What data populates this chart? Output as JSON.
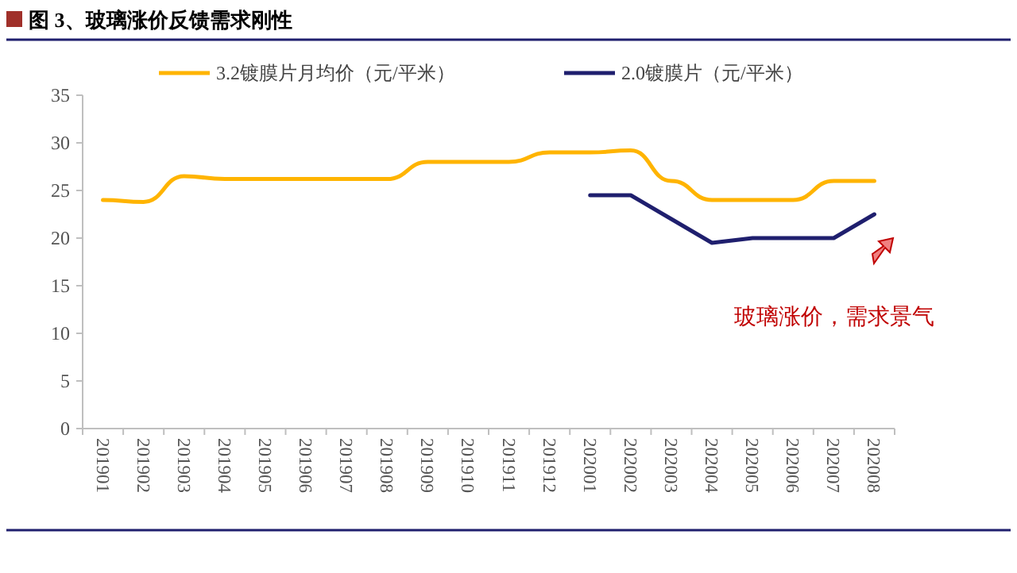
{
  "chart_data": {
    "type": "line",
    "title": "图 3、玻璃涨价反馈需求刚性",
    "categories": [
      "201901",
      "201902",
      "201903",
      "201904",
      "201905",
      "201906",
      "201907",
      "201908",
      "201909",
      "201910",
      "201911",
      "201912",
      "202001",
      "202002",
      "202003",
      "202004",
      "202005",
      "202006",
      "202007",
      "202008"
    ],
    "series": [
      {
        "name": "3.2镀膜片月均价（元/平米）",
        "color": "#ffb400",
        "values": [
          24,
          23.8,
          26.5,
          26.2,
          26.2,
          26.2,
          26.2,
          26.2,
          28,
          28,
          28,
          29,
          29,
          29.2,
          26,
          24,
          24,
          24,
          26,
          26
        ]
      },
      {
        "name": "2.0镀膜片（元/平米）",
        "color": "#1f1f6e",
        "values": [
          null,
          null,
          null,
          null,
          null,
          null,
          null,
          null,
          null,
          null,
          null,
          null,
          24.5,
          24.5,
          22,
          19.5,
          20,
          20,
          20,
          22.5
        ]
      }
    ],
    "ylim": [
      0,
      35
    ],
    "yticks": [
      0,
      5,
      10,
      15,
      20,
      25,
      30,
      35
    ],
    "grid": false,
    "legend": "top",
    "annotations": [
      "玻璃涨价，需求景气"
    ]
  }
}
